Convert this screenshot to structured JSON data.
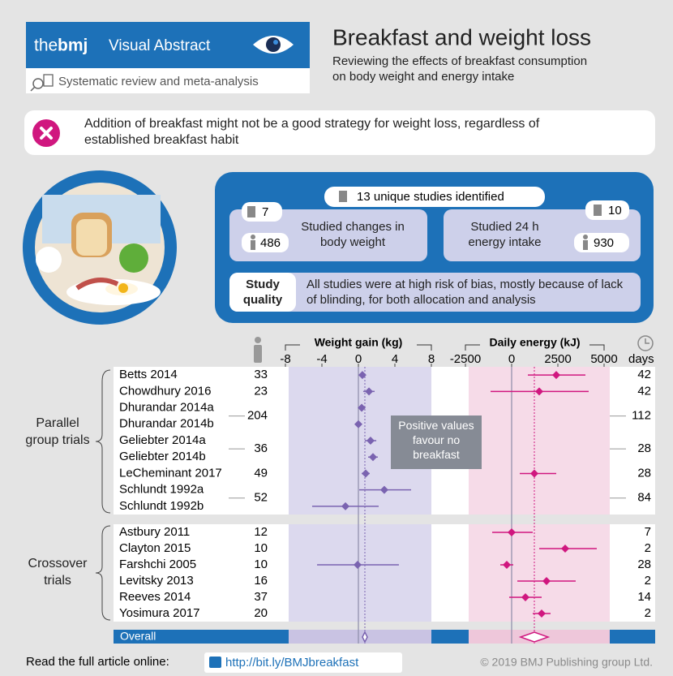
{
  "header": {
    "brand_the": "the",
    "brand_bmj": "bmj",
    "brand_label": "Visual Abstract",
    "study_type": "Systematic review and meta-analysis",
    "title": "Breakfast and weight loss",
    "subtitle": "Reviewing the effects of breakfast consumption on body weight and energy intake"
  },
  "key_finding": "Addition of breakfast might not be a good strategy for weight loss, regardless of established breakfast habit",
  "summary": {
    "total": "13 unique studies identified",
    "weight": {
      "label": "Studied changes in body weight",
      "studies": 7,
      "participants": 486
    },
    "energy": {
      "label": "Studied 24 h energy intake",
      "studies": 10,
      "participants": 930
    },
    "quality_label": "Study quality",
    "quality": "All studies were at high risk of bias, mostly because of lack of blinding, for both allocation and analysis"
  },
  "table": {
    "days_label": "days",
    "overall_label": "Overall",
    "groups": [
      {
        "label": "Parallel group trials",
        "studies": [
          {
            "name": "Betts 2014",
            "participants": 33,
            "days": 42
          },
          {
            "name": "Chowdhury 2016",
            "participants": 23,
            "days": 42
          },
          {
            "name": "Dhurandar 2014a",
            "participants": 204,
            "days": 112
          },
          {
            "name": "Dhurandar 2014b",
            "participants": null,
            "days": null
          },
          {
            "name": "Geliebter 2014a",
            "participants": 36,
            "days": 28
          },
          {
            "name": "Geliebter 2014b",
            "participants": null,
            "days": null
          },
          {
            "name": "LeCheminant 2017",
            "participants": 49,
            "days": 28
          },
          {
            "name": "Schlundt 1992a",
            "participants": 52,
            "days": 84
          },
          {
            "name": "Schlundt 1992b",
            "participants": null,
            "days": null
          }
        ]
      },
      {
        "label": "Crossover trials",
        "studies": [
          {
            "name": "Astbury 2011",
            "participants": 12,
            "days": 7
          },
          {
            "name": "Clayton 2015",
            "participants": 10,
            "days": 2
          },
          {
            "name": "Farshchi 2005",
            "participants": 10,
            "days": 28
          },
          {
            "name": "Levitsky 2013",
            "participants": 16,
            "days": 2
          },
          {
            "name": "Reeves 2014",
            "participants": 37,
            "days": 14
          },
          {
            "name": "Yosimura 2017",
            "participants": 20,
            "days": 2
          }
        ]
      }
    ]
  },
  "annotation": "Positive values favour no breakfast",
  "chart_data": [
    {
      "type": "forest",
      "title": "Weight gain (kg)",
      "color": "#7a63b0",
      "xlim": [
        -8,
        8
      ],
      "xticks": [
        -8,
        -4,
        0,
        4,
        8
      ],
      "values": [
        0.44,
        1.16,
        0.36,
        0.0,
        1.33,
        1.6,
        0.8,
        2.84,
        -1.42,
        null,
        null,
        -0.09,
        null,
        null,
        null
      ],
      "ci_low": [
        0.1,
        0.53,
        0.05,
        -0.3,
        0.7,
        1.07,
        0.36,
        0.09,
        -5.07,
        null,
        null,
        -4.53,
        null,
        null,
        null
      ],
      "ci_high": [
        0.8,
        1.78,
        0.67,
        0.3,
        1.96,
        2.13,
        1.24,
        5.78,
        2.22,
        null,
        null,
        4.44,
        null,
        null,
        null
      ],
      "overall": {
        "value": 0.71,
        "low": 0.44,
        "high": 0.98
      }
    },
    {
      "type": "forest",
      "title": "Daily energy (kJ)",
      "color": "#d0177f",
      "xlim": [
        -2500,
        5000
      ],
      "xticks": [
        -2500,
        0,
        2500,
        5000
      ],
      "values": [
        2412,
        1491,
        null,
        null,
        null,
        null,
        1228,
        null,
        null,
        0,
        2895,
        -263,
        1886,
        746,
        1623
      ],
      "ci_low": [
        877,
        -1140,
        null,
        null,
        null,
        null,
        439,
        null,
        null,
        -1053,
        1491,
        -614,
        307,
        -132,
        1140
      ],
      "ci_high": [
        3991,
        4167,
        null,
        null,
        null,
        null,
        2412,
        null,
        null,
        1140,
        4605,
        88,
        3465,
        1623,
        2105
      ],
      "overall": {
        "value": 1228,
        "low": 482,
        "high": 1974
      }
    }
  ],
  "footer": {
    "prompt": "Read the full article online:",
    "link": "http://bit.ly/BMJbreakfast",
    "copyright": "© 2019 BMJ Publishing group Ltd."
  }
}
